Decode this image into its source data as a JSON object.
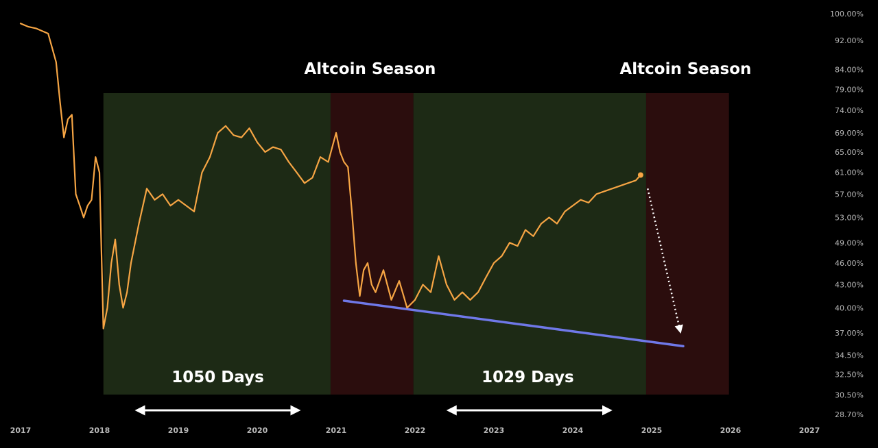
{
  "chart_data": {
    "type": "line",
    "title": "",
    "xlabel": "",
    "ylabel": "",
    "y_scale": "log",
    "ylim": [
      28.7,
      100
    ],
    "x_ticks": [
      "2017",
      "2018",
      "2019",
      "2020",
      "2021",
      "2022",
      "2023",
      "2024",
      "2025",
      "2026",
      "2027"
    ],
    "y_ticks": [
      "100.00%",
      "92.00%",
      "84.00%",
      "79.00%",
      "74.00%",
      "69.00%",
      "65.00%",
      "61.00%",
      "57.00%",
      "53.00%",
      "49.00%",
      "46.00%",
      "43.00%",
      "40.00%",
      "37.00%",
      "34.50%",
      "32.50%",
      "30.50%",
      "28.70%"
    ],
    "grid": false,
    "line_color": "#f6a544",
    "series": [
      {
        "x": [
          2017.0,
          2017.1,
          2017.2,
          2017.35,
          2017.45,
          2017.5,
          2017.55,
          2017.6,
          2017.65,
          2017.7,
          2017.75,
          2017.8,
          2017.85,
          2017.9,
          2017.95,
          2018.0,
          2018.05,
          2018.1,
          2018.15,
          2018.2,
          2018.25,
          2018.3,
          2018.35,
          2018.4,
          2018.5,
          2018.6,
          2018.7,
          2018.8,
          2018.9,
          2019.0,
          2019.1,
          2019.2,
          2019.3,
          2019.4,
          2019.5,
          2019.6,
          2019.7,
          2019.8,
          2019.9,
          2020.0,
          2020.1,
          2020.2,
          2020.3,
          2020.4,
          2020.5,
          2020.6,
          2020.7,
          2020.8,
          2020.9,
          2021.0,
          2021.05,
          2021.1,
          2021.15,
          2021.2,
          2021.25,
          2021.3,
          2021.35,
          2021.4,
          2021.45,
          2021.5,
          2021.6,
          2021.7,
          2021.8,
          2021.9,
          2022.0,
          2022.1,
          2022.2,
          2022.3,
          2022.4,
          2022.5,
          2022.6,
          2022.7,
          2022.8,
          2022.9,
          2023.0,
          2023.1,
          2023.2,
          2023.3,
          2023.4,
          2023.5,
          2023.6,
          2023.7,
          2023.8,
          2023.9,
          2024.0,
          2024.1,
          2024.2,
          2024.3,
          2024.4,
          2024.5,
          2024.6,
          2024.7,
          2024.8,
          2024.86
        ],
        "values": [
          97.0,
          96.0,
          95.5,
          94.0,
          86.0,
          76.0,
          68.0,
          72.0,
          73.0,
          57.0,
          55.0,
          53.0,
          55.0,
          56.0,
          64.0,
          61.0,
          37.5,
          40.0,
          46.0,
          49.5,
          43.0,
          40.0,
          42.0,
          46.0,
          52.0,
          58.0,
          56.0,
          57.0,
          55.0,
          56.0,
          55.0,
          54.0,
          61.0,
          64.0,
          69.0,
          70.5,
          68.5,
          68.0,
          70.0,
          67.0,
          65.0,
          66.0,
          65.5,
          63.0,
          61.0,
          59.0,
          60.0,
          64.0,
          63.0,
          69.0,
          65.0,
          63.0,
          62.0,
          54.0,
          46.0,
          41.5,
          45.0,
          46.0,
          43.0,
          42.0,
          45.0,
          41.0,
          43.5,
          40.0,
          41.0,
          43.0,
          42.0,
          47.0,
          43.0,
          41.0,
          42.0,
          41.0,
          42.0,
          44.0,
          46.0,
          47.0,
          49.0,
          48.5,
          51.0,
          50.0,
          52.0,
          53.0,
          52.0,
          54.0,
          55.0,
          56.0,
          55.5,
          57.0,
          57.5,
          58.0,
          58.5,
          59.0,
          59.5,
          60.5
        ]
      }
    ],
    "trendline": {
      "color": "#6f78e8",
      "x": [
        2021.1,
        2025.4
      ],
      "y": [
        40.9,
        35.5
      ]
    },
    "shaded_regions": [
      {
        "x_start": 2018.05,
        "x_end": 2020.93,
        "color": "#1d2a15"
      },
      {
        "x_start": 2020.93,
        "x_end": 2021.98,
        "color": "#2b0d0d"
      },
      {
        "x_start": 2021.98,
        "x_end": 2024.93,
        "color": "#1d2a15"
      },
      {
        "x_start": 2024.93,
        "x_end": 2025.98,
        "color": "#2b0d0d"
      }
    ],
    "annotations": [
      {
        "text": "Altcoin Season",
        "x": 2021.43,
        "style": "season"
      },
      {
        "text": "Altcoin Season",
        "x": 2025.43,
        "style": "season"
      },
      {
        "text": "1050 Days",
        "x": 2019.5,
        "style": "days"
      },
      {
        "text": "1029 Days",
        "x": 2023.43,
        "style": "days"
      }
    ],
    "range_arrows": [
      {
        "x_start": 2018.5,
        "x_end": 2020.5
      },
      {
        "x_start": 2022.45,
        "x_end": 2024.45
      }
    ],
    "direction_arrow": {
      "x_start": 2024.95,
      "y_start": 58.0,
      "x_end": 2025.36,
      "y_end": 37.3
    }
  }
}
